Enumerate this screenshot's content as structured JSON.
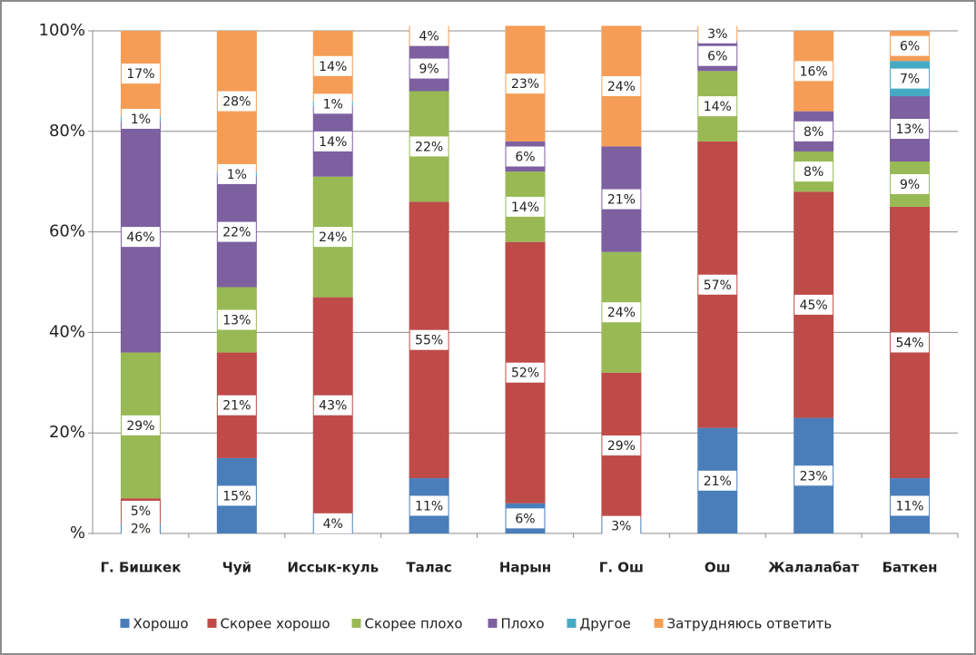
{
  "chart_data": {
    "type": "stacked_bar",
    "categories": [
      "Г. Бишкек",
      "Чуй",
      "Иссык-куль",
      "Талас",
      "Нарын",
      "Г. Ош",
      "Ош",
      "Жалалабат",
      "Баткен"
    ],
    "series": [
      {
        "name": "Хорошо",
        "color": "#4a7ebb",
        "values": [
          2,
          15,
          4,
          11,
          6,
          3,
          21,
          23,
          11
        ],
        "value_labels": [
          "2%",
          "15%",
          "4%",
          "11%",
          "6%",
          "3%",
          "21%",
          "23%",
          "11%"
        ]
      },
      {
        "name": "Скорее хорошо",
        "color": "#be4b48",
        "values": [
          5,
          21,
          43,
          55,
          52,
          29,
          57,
          45,
          54
        ],
        "value_labels": [
          "5%",
          "21%",
          "43%",
          "55%",
          "52%",
          "29%",
          "57%",
          "45%",
          "54%"
        ]
      },
      {
        "name": "Скорее плохо",
        "color": "#98b954",
        "values": [
          29,
          13,
          24,
          22,
          14,
          24,
          14,
          8,
          9
        ],
        "value_labels": [
          "29%",
          "13%",
          "24%",
          "22%",
          "14%",
          "24%",
          "14%",
          "8%",
          "9%"
        ]
      },
      {
        "name": "Плохо",
        "color": "#7d60a0",
        "values": [
          46,
          22,
          14,
          9,
          6,
          21,
          6,
          8,
          13
        ],
        "value_labels": [
          "46%",
          "22%",
          "14%",
          "9%",
          "6%",
          "21%",
          "6%",
          "8%",
          "13%"
        ]
      },
      {
        "name": "Другое",
        "color": "#46aac5",
        "values": [
          1,
          1,
          1,
          0,
          0,
          0,
          0,
          0,
          7
        ],
        "value_labels": [
          "1%",
          "1%",
          "1%",
          null,
          null,
          null,
          null,
          null,
          "7%"
        ]
      },
      {
        "name": "Затрудняюсь ответить",
        "color": "#f59d56",
        "values": [
          17,
          28,
          14,
          4,
          23,
          24,
          3,
          16,
          6
        ],
        "value_labels": [
          "17%",
          "28%",
          "14%",
          "4%",
          "23%",
          "24%",
          "3%",
          "16%",
          "6%"
        ]
      }
    ],
    "ylim": [
      0,
      100
    ],
    "yticks": [
      {
        "value": 0,
        "label": "%"
      },
      {
        "value": 20,
        "label": "20%"
      },
      {
        "value": 40,
        "label": "40%"
      },
      {
        "value": 60,
        "label": "60%"
      },
      {
        "value": 80,
        "label": "80%"
      },
      {
        "value": 100,
        "label": "100%"
      }
    ],
    "grid": true,
    "legend": "bottom"
  }
}
